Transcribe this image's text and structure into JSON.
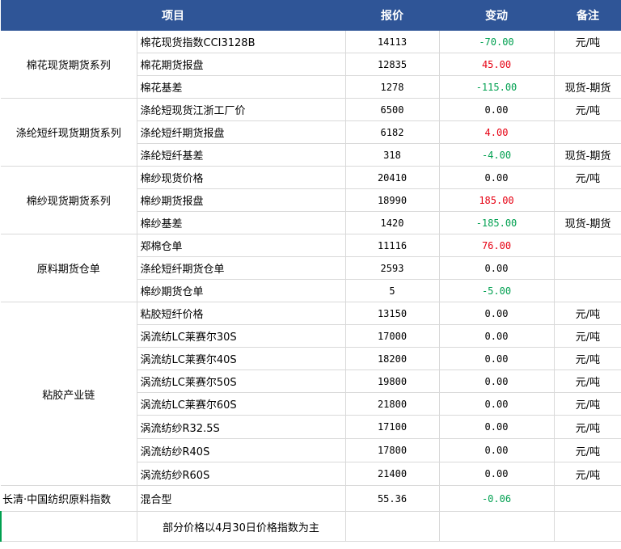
{
  "header": {
    "item": "项目",
    "price": "报价",
    "change": "变动",
    "note": "备注"
  },
  "groups": [
    {
      "name": "棉花现货期货系列",
      "rows": [
        {
          "item": "棉花现货指数CCI3128B",
          "price": "14113",
          "change": "-70.00",
          "dir": "down",
          "note": "元/吨"
        },
        {
          "item": "棉花期货报盘",
          "price": "12835",
          "change": "45.00",
          "dir": "up",
          "note": ""
        },
        {
          "item": "棉花基差",
          "price": "1278",
          "change": "-115.00",
          "dir": "down",
          "note": "现货-期货"
        }
      ]
    },
    {
      "name": "涤纶短纤现货期货系列",
      "rows": [
        {
          "item": "涤纶短现货江浙工厂价",
          "price": "6500",
          "change": "0.00",
          "dir": "flat",
          "note": "元/吨"
        },
        {
          "item": "涤纶短纤期货报盘",
          "price": "6182",
          "change": "4.00",
          "dir": "up",
          "note": ""
        },
        {
          "item": "涤纶短纤基差",
          "price": "318",
          "change": "-4.00",
          "dir": "down",
          "note": "现货-期货"
        }
      ]
    },
    {
      "name": "棉纱现货期货系列",
      "rows": [
        {
          "item": "棉纱现货价格",
          "price": "20410",
          "change": "0.00",
          "dir": "flat",
          "note": "元/吨"
        },
        {
          "item": "棉纱期货报盘",
          "price": "18990",
          "change": "185.00",
          "dir": "up",
          "note": ""
        },
        {
          "item": "棉纱基差",
          "price": "1420",
          "change": "-185.00",
          "dir": "down",
          "note": "现货-期货"
        }
      ]
    },
    {
      "name": "原料期货仓单",
      "rows": [
        {
          "item": "郑棉仓单",
          "price": "11116",
          "change": "76.00",
          "dir": "up",
          "note": ""
        },
        {
          "item": "涤纶短纤期货仓单",
          "price": "2593",
          "change": "0.00",
          "dir": "flat",
          "note": ""
        },
        {
          "item": "棉纱期货仓单",
          "price": "5",
          "change": "-5.00",
          "dir": "down",
          "note": ""
        }
      ]
    },
    {
      "name": "粘胶产业链",
      "rows": [
        {
          "item": "粘胶短纤价格",
          "price": "13150",
          "change": "0.00",
          "dir": "flat",
          "note": "元/吨"
        },
        {
          "item": "涡流纺LC莱赛尔30S",
          "price": "17000",
          "change": "0.00",
          "dir": "flat",
          "note": "元/吨"
        },
        {
          "item": "涡流纺LC莱赛尔40S",
          "price": "18200",
          "change": "0.00",
          "dir": "flat",
          "note": "元/吨"
        },
        {
          "item": "涡流纺LC莱赛尔50S",
          "price": "19800",
          "change": "0.00",
          "dir": "flat",
          "note": "元/吨"
        },
        {
          "item": "涡流纺LC莱赛尔60S",
          "price": "21800",
          "change": "0.00",
          "dir": "flat",
          "note": "元/吨"
        },
        {
          "item": "涡流纺纱R32.5S",
          "price": "17100",
          "change": "0.00",
          "dir": "flat",
          "note": "元/吨"
        },
        {
          "item": "涡流纺纱R40S",
          "price": "17800",
          "change": "0.00",
          "dir": "flat",
          "note": "元/吨"
        },
        {
          "item": "涡流纺纱R60S",
          "price": "21400",
          "change": "0.00",
          "dir": "flat",
          "note": "元/吨"
        }
      ]
    }
  ],
  "index_row": {
    "name": "长清·中国纺织原料指数",
    "item": "混合型",
    "price": "55.36",
    "change": "-0.06",
    "dir": "down",
    "note": ""
  },
  "footnote": "部分价格以4月30日价格指数为主",
  "colors": {
    "header_bg": "#2f5597",
    "up": "#e60012",
    "down": "#00a050"
  }
}
